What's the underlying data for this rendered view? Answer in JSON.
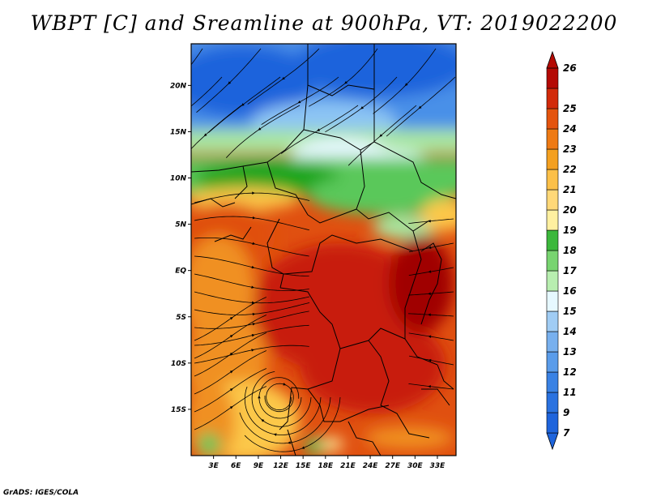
{
  "title": "WBPT [C] and Sreamline at 900hPa, VT: 2019022200",
  "credit": "GrADS: IGES/COLA",
  "colors": {
    "blue_dark": "#1e64dc",
    "blue": "#4a90e8",
    "blue_light": "#8cc4f4",
    "cyan_pale": "#e6f8ff",
    "green_dark": "#1fa51f",
    "green": "#5ac85a",
    "green_light": "#a8e6a0",
    "yellow_pale": "#fff0a0",
    "orange_light": "#fcc84a",
    "orange": "#f09020",
    "red_orange": "#e05010",
    "red": "#c81e0a",
    "dark_red": "#a00000",
    "streamline": "#000000"
  },
  "map": {
    "lon_range": [
      0,
      35.5
    ],
    "lat_range": [
      -20,
      24.5
    ],
    "lat_ticks": [
      {
        "value": 20,
        "label": "20N"
      },
      {
        "value": 15,
        "label": "15N"
      },
      {
        "value": 10,
        "label": "10N"
      },
      {
        "value": 5,
        "label": "5N"
      },
      {
        "value": 0,
        "label": "EQ"
      },
      {
        "value": -5,
        "label": "5S"
      },
      {
        "value": -10,
        "label": "10S"
      },
      {
        "value": -15,
        "label": "15S"
      }
    ],
    "lon_ticks": [
      {
        "value": 3,
        "label": "3E"
      },
      {
        "value": 6,
        "label": "6E"
      },
      {
        "value": 9,
        "label": "9E"
      },
      {
        "value": 12,
        "label": "12E"
      },
      {
        "value": 15,
        "label": "15E"
      },
      {
        "value": 18,
        "label": "18E"
      },
      {
        "value": 21,
        "label": "21E"
      },
      {
        "value": 24,
        "label": "24E"
      },
      {
        "value": 27,
        "label": "27E"
      },
      {
        "value": 30,
        "label": "30E"
      },
      {
        "value": 33,
        "label": "33E"
      }
    ]
  },
  "colorbar": {
    "unit": "C",
    "levels": [
      {
        "label": "7",
        "color": "#1e64dc"
      },
      {
        "label": "9",
        "color": "#2a72e0"
      },
      {
        "label": "11",
        "color": "#3a82e4"
      },
      {
        "label": "12",
        "color": "#5a9cea"
      },
      {
        "label": "13",
        "color": "#78b0ee"
      },
      {
        "label": "14",
        "color": "#a0ccf4"
      },
      {
        "label": "15",
        "color": "#e6f8ff"
      },
      {
        "label": "16",
        "color": "#b8eeb0"
      },
      {
        "label": "17",
        "color": "#78d470"
      },
      {
        "label": "18",
        "color": "#3cb83c"
      },
      {
        "label": "19",
        "color": "#fff0a0"
      },
      {
        "label": "20",
        "color": "#ffd878"
      },
      {
        "label": "21",
        "color": "#fcc048"
      },
      {
        "label": "22",
        "color": "#f4a020"
      },
      {
        "label": "23",
        "color": "#ee7a14"
      },
      {
        "label": "24",
        "color": "#e4540e"
      },
      {
        "label": "25",
        "color": "#d22a0a"
      },
      {
        "label": "26",
        "color": "#b40a04"
      }
    ]
  }
}
